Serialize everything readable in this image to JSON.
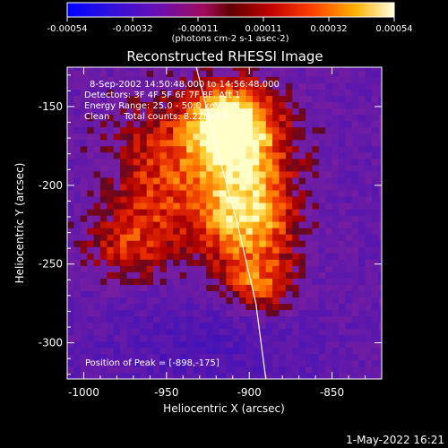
{
  "colorbar": {
    "ticks": [
      "-0.00054",
      "-0.00032",
      "-0.00011",
      "0.00011",
      "0.00032",
      "0.00054"
    ],
    "unit_label": "(photons cm-2 s-1 asec-2)",
    "min": -0.00054,
    "max": 0.00054
  },
  "chart_data": {
    "type": "heatmap",
    "title": "Reconstructed RHESSI Image",
    "xlabel": "Heliocentric X (arcsec)",
    "ylabel": "Heliocentric Y (arcsec)",
    "xlim": [
      -1010,
      -820
    ],
    "ylim": [
      -323,
      -125
    ],
    "x_ticks": [
      "-1000",
      "-950",
      "-900",
      "-850"
    ],
    "x_tick_values": [
      -1000,
      -950,
      -900,
      -850
    ],
    "y_ticks": [
      "-150",
      "-200",
      "-250",
      "-300"
    ],
    "y_tick_values": [
      -150,
      -200,
      -250,
      -300
    ],
    "colormap": "RHESSI color table: purple (negative) through red/orange to yellow-white (positive)",
    "info_lines": [
      "8-Sep-2002 14:50:48.000 to 14:56:48.000",
      "Detectors: 3F 4F 5F 6F 7F 8F, Att 1",
      "Energy Range: 25.0 - 50.0 keV",
      "Clean     Total counts: 8.22E+03"
    ],
    "peak_label": "Position of Peak = [-898,-175]",
    "peak": {
      "x": -898,
      "y": -175
    },
    "limb_curve": {
      "x": [
        -932,
        -920,
        -907,
        -896,
        -890
      ],
      "y": [
        -125,
        -175,
        -225,
        -275,
        -323
      ]
    },
    "source_regions": [
      {
        "name": "main",
        "x": -905,
        "y": -180,
        "sx": 22,
        "sy": 30,
        "amp": 1.0
      },
      {
        "name": "upper",
        "x": -915,
        "y": -160,
        "sx": 15,
        "sy": 14,
        "amp": 0.85
      },
      {
        "name": "middle",
        "x": -900,
        "y": -225,
        "sx": 20,
        "sy": 18,
        "amp": 0.7
      },
      {
        "name": "lower",
        "x": -895,
        "y": -262,
        "sx": 16,
        "sy": 14,
        "amp": 0.7
      },
      {
        "name": "left-lobe",
        "x": -955,
        "y": -195,
        "sx": 24,
        "sy": 36,
        "amp": 0.55
      },
      {
        "name": "left-low",
        "x": -975,
        "y": -240,
        "sx": 18,
        "sy": 16,
        "amp": 0.4
      }
    ]
  },
  "footer": {
    "timestamp": "1-May-2022 16:21"
  }
}
